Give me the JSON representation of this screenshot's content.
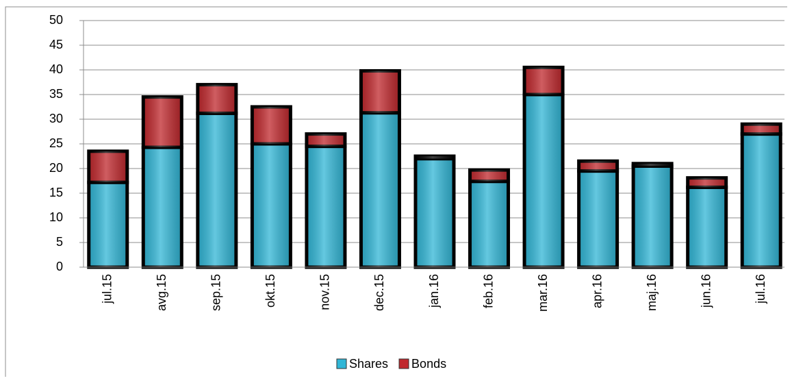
{
  "chart_data": {
    "type": "stacked_bar",
    "categories": [
      "jul.15",
      "avg.15",
      "sep.15",
      "okt.15",
      "nov.15",
      "dec.15",
      "jan.16",
      "feb.16",
      "mar.16",
      "apr.16",
      "maj.16",
      "jun.16",
      "jul.16"
    ],
    "series": [
      {
        "name": "Shares",
        "color": "#31b6d6",
        "values": [
          17.2,
          24.3,
          31.2,
          25,
          24.5,
          31.3,
          22,
          17.4,
          35,
          19.5,
          20.5,
          16.2,
          27
        ]
      },
      {
        "name": "Bonds",
        "color": "#c0282d",
        "values": [
          6.3,
          10.2,
          5.8,
          7.5,
          2.5,
          8.5,
          0.5,
          2.3,
          5.5,
          2,
          0.5,
          1.9,
          2
        ]
      }
    ],
    "ylim": [
      0,
      50
    ],
    "yticks": [
      0,
      5,
      10,
      15,
      20,
      25,
      30,
      35,
      40,
      45,
      50
    ],
    "grid": true,
    "legend": "bottom"
  }
}
